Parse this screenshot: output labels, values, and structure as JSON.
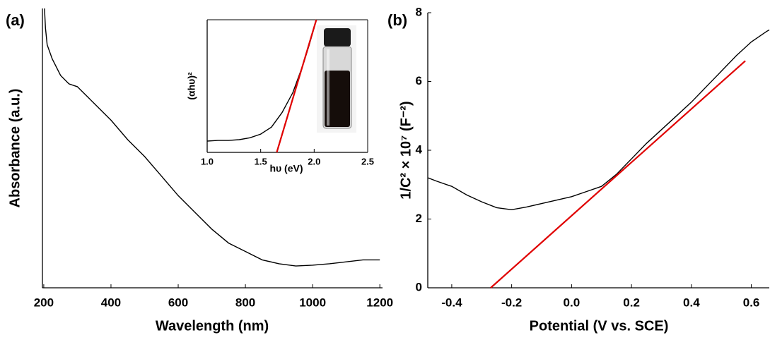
{
  "chart_data": [
    {
      "type": "line",
      "title": "(a)",
      "xlabel": "Wavelength (nm)",
      "ylabel": "Absorbance (a.u.)",
      "xlim": [
        196,
        1208
      ],
      "ylim": [
        0,
        1
      ],
      "xticks": [
        200,
        400,
        600,
        800,
        1000,
        1200
      ],
      "series": [
        {
          "color": "#000000",
          "x": [
            202,
            205,
            210,
            225,
            250,
            275,
            300,
            350,
            400,
            450,
            500,
            550,
            600,
            650,
            700,
            750,
            800,
            850,
            900,
            950,
            1000,
            1050,
            1100,
            1150,
            1200
          ],
          "values": [
            1.0,
            0.93,
            0.87,
            0.82,
            0.76,
            0.73,
            0.72,
            0.66,
            0.6,
            0.53,
            0.47,
            0.4,
            0.33,
            0.27,
            0.21,
            0.16,
            0.13,
            0.1,
            0.086,
            0.078,
            0.081,
            0.086,
            0.093,
            0.1,
            0.1
          ]
        }
      ]
    },
    {
      "type": "line",
      "xlabel": "hυ (eV)",
      "ylabel": "(αhυ)²",
      "xlim": [
        1.0,
        2.5
      ],
      "ylim": [
        0,
        1
      ],
      "xticks": [
        {
          "value": 1.0,
          "label": "1.0"
        },
        1.5,
        {
          "value": 2.0,
          "label": "2.0"
        },
        2.5
      ],
      "series": [
        {
          "color": "#000000",
          "x": [
            1.0,
            1.1,
            1.2,
            1.3,
            1.4,
            1.5,
            1.6,
            1.7,
            1.8,
            1.9,
            1.95,
            2.0
          ],
          "values": [
            0.085,
            0.09,
            0.09,
            0.096,
            0.11,
            0.138,
            0.19,
            0.3,
            0.45,
            0.67,
            0.8,
            0.94
          ]
        },
        {
          "color": "#e00000",
          "x": [
            1.65,
            2.02
          ],
          "values": [
            0,
            1
          ]
        }
      ]
    },
    {
      "type": "line",
      "title": "(b)",
      "xlabel": "Potential (V vs. SCE)",
      "ylabel": "1/C² × 10⁷ (F⁻²)",
      "xlim": [
        -0.48,
        0.66
      ],
      "ylim": [
        0,
        8
      ],
      "xticks": [
        -0.4,
        -0.2,
        {
          "value": 0.0,
          "label": "0.0"
        },
        0.2,
        0.4,
        0.6
      ],
      "yticks": [
        0,
        2,
        4,
        6,
        8
      ],
      "series": [
        {
          "color": "#000000",
          "x": [
            -0.48,
            -0.45,
            -0.4,
            -0.35,
            -0.3,
            -0.25,
            -0.2,
            -0.15,
            -0.1,
            -0.05,
            0.0,
            0.05,
            0.1,
            0.15,
            0.2,
            0.25,
            0.3,
            0.35,
            0.4,
            0.45,
            0.5,
            0.55,
            0.6,
            0.65,
            0.66
          ],
          "values": [
            3.2,
            3.1,
            2.95,
            2.7,
            2.5,
            2.33,
            2.27,
            2.35,
            2.45,
            2.55,
            2.65,
            2.8,
            2.95,
            3.3,
            3.75,
            4.2,
            4.6,
            5.0,
            5.4,
            5.85,
            6.3,
            6.75,
            7.15,
            7.45,
            7.5
          ]
        },
        {
          "color": "#e00000",
          "x": [
            -0.27,
            0.58
          ],
          "values": [
            0,
            6.6
          ]
        }
      ]
    }
  ]
}
